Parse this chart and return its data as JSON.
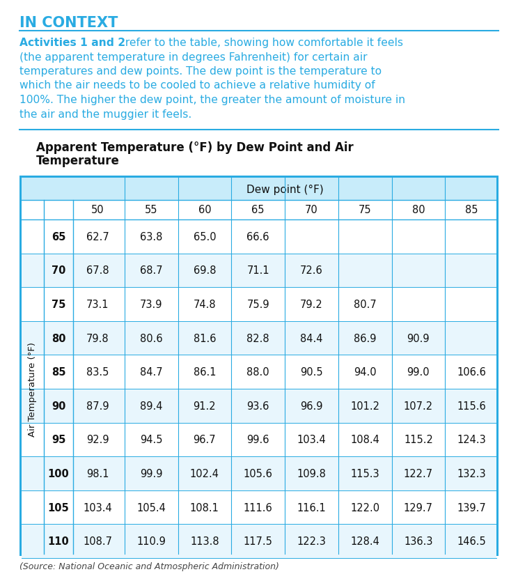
{
  "title_header": "IN CONTEXT",
  "header_color": "#29ABE2",
  "intro_bold": "Activities 1 and 2",
  "intro_text": " refer to the table, showing how comfortable it feels (the apparent temperature in degrees Fahrenheit) for certain air temperatures and dew points. The dew point is the temperature to which the air needs to be cooled to achieve a relative humidity of 100%. The higher the dew point, the greater the amount of moisture in the air and the muggier it feels.",
  "table_title_line1": "Apparent Temperature (°F) by Dew Point and Air",
  "table_title_line2": "Temperature",
  "dew_point_header": "Dew point (°F)",
  "air_temp_label": "Air Temperature (°F)",
  "col_headers": [
    "50",
    "55",
    "60",
    "65",
    "70",
    "75",
    "80",
    "85"
  ],
  "row_labels": [
    "65",
    "70",
    "75",
    "80",
    "85",
    "90",
    "95",
    "100",
    "105",
    "110"
  ],
  "table_data": [
    [
      "62.7",
      "63.8",
      "65.0",
      "66.6",
      "",
      "",
      "",
      ""
    ],
    [
      "67.8",
      "68.7",
      "69.8",
      "71.1",
      "72.6",
      "",
      "",
      ""
    ],
    [
      "73.1",
      "73.9",
      "74.8",
      "75.9",
      "79.2",
      "80.7",
      "",
      ""
    ],
    [
      "79.8",
      "80.6",
      "81.6",
      "82.8",
      "84.4",
      "86.9",
      "90.9",
      ""
    ],
    [
      "83.5",
      "84.7",
      "86.1",
      "88.0",
      "90.5",
      "94.0",
      "99.0",
      "106.6"
    ],
    [
      "87.9",
      "89.4",
      "91.2",
      "93.6",
      "96.9",
      "101.2",
      "107.2",
      "115.6"
    ],
    [
      "92.9",
      "94.5",
      "96.7",
      "99.6",
      "103.4",
      "108.4",
      "115.2",
      "124.3"
    ],
    [
      "98.1",
      "99.9",
      "102.4",
      "105.6",
      "109.8",
      "115.3",
      "122.7",
      "132.3"
    ],
    [
      "103.4",
      "105.4",
      "108.1",
      "111.6",
      "116.1",
      "122.0",
      "129.7",
      "139.7"
    ],
    [
      "108.7",
      "110.9",
      "113.8",
      "117.5",
      "122.3",
      "128.4",
      "136.3",
      "146.5"
    ]
  ],
  "source_text": "(Source: National Oceanic and Atmospheric Administration)",
  "bg_color": "#FFFFFF",
  "table_header_bg": "#C8ECFA",
  "table_border_color": "#29ABE2",
  "table_row_bg_white": "#FFFFFF",
  "table_row_bg_alt": "#E8F6FD",
  "cell_text_color": "#111111",
  "separator_color": "#29ABE2",
  "intro_lines": [
    "(the apparent temperature in degrees Fahrenheit) for certain air",
    "temperatures and dew points. The dew point is the temperature to",
    "which the air needs to be cooled to achieve a relative humidity of",
    "100%. The higher the dew point, the greater the amount of moisture in",
    "the air and the muggier it feels."
  ],
  "intro_line0_bold": "Activities 1 and 2",
  "intro_line0_rest": " refer to the table, showing how comfortable it feels"
}
